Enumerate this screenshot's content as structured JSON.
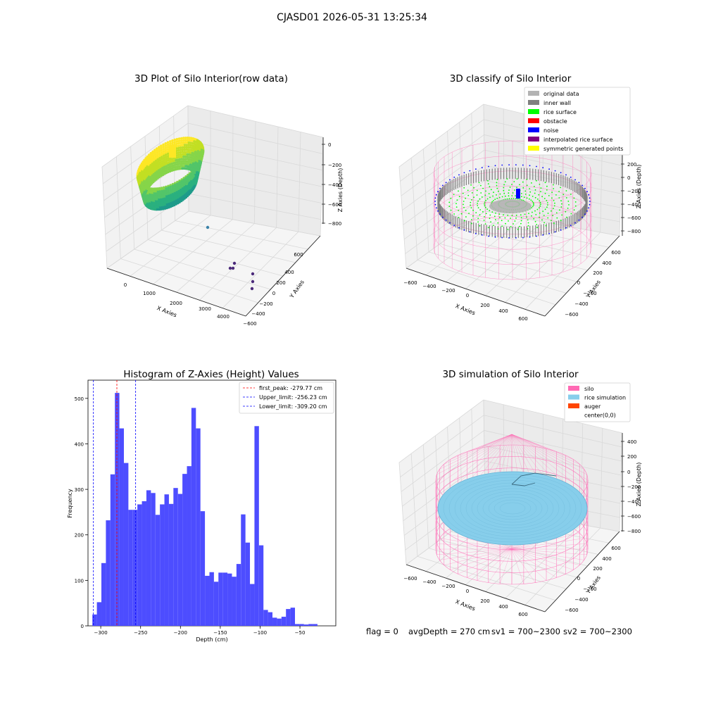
{
  "figure_title": "CJASD01 2026-05-31 13:25:34",
  "status_line": {
    "flag": "flag = 0",
    "avg_depth": "avgDepth = 270 cm",
    "sv1": "sv1 = 700~2300",
    "sv2": "sv2 = 700~2300"
  },
  "colors": {
    "original_data": "#b3b3b3",
    "inner_wall": "#808080",
    "rice_surface": "#00ff00",
    "obstacle": "#ff0000",
    "noise": "#0000ff",
    "interpolated_rice_surface": "#800080",
    "symmetric_generated_points": "#ffff00",
    "silo": "#ff69b4",
    "rice_simulation": "#87ceeb",
    "auger": "#ff4500",
    "histogram_bar": "#4d4dff",
    "first_peak_line": "#ff0000",
    "limit_lines": "#0000ff"
  },
  "chart_data": [
    {
      "type": "scatter3d",
      "title": "3D Plot of Silo Interior(row data)",
      "xlabel": "X Axies",
      "ylabel": "Y Axies",
      "zlabel": "Z Axies (Depth)",
      "x_ticks": [
        "0",
        "1000",
        "2000",
        "3000",
        "4000"
      ],
      "y_ticks": [
        "600",
        "400",
        "200",
        "0",
        "−200",
        "−400",
        "−600"
      ],
      "z_ticks": [
        "0",
        "−200",
        "−400",
        "−600",
        "−800"
      ],
      "outlier_points_note": "sparse points toward large X, deep Z"
    },
    {
      "type": "scatter3d",
      "title": "3D classify of Silo Interior",
      "xlabel": "X Axies",
      "ylabel": "Y Axies",
      "zlabel": "Z Axies (Depth)",
      "x_ticks": [
        "−600",
        "−400",
        "−200",
        "0",
        "200",
        "400",
        "600"
      ],
      "y_ticks": [
        "600",
        "400",
        "200",
        "0",
        "−200",
        "−400",
        "−600"
      ],
      "z_ticks": [
        "200",
        "0",
        "−200",
        "−400",
        "−600",
        "−800"
      ],
      "legend": [
        {
          "label": "original data",
          "color": "#b3b3b3"
        },
        {
          "label": "inner wall",
          "color": "#808080"
        },
        {
          "label": "rice surface",
          "color": "#00ff00"
        },
        {
          "label": "obstacle",
          "color": "#ff0000"
        },
        {
          "label": "noise",
          "color": "#0000ff"
        },
        {
          "label": "interpolated rice surface",
          "color": "#800080"
        },
        {
          "label": "symmetric generated points",
          "color": "#ffff00"
        }
      ],
      "legend_placement": "top-right"
    },
    {
      "type": "bar",
      "title": "Histogram of Z-Axies (Height) Values",
      "xlabel": "Depth (cm)",
      "ylabel": "Frequency",
      "xlim": [
        -316,
        -5
      ],
      "ylim": [
        0,
        540
      ],
      "x_ticks": [
        -300,
        -250,
        -200,
        -150,
        -100,
        -50
      ],
      "y_ticks": [
        0,
        100,
        200,
        300,
        400,
        500
      ],
      "bin_width": 5.65,
      "bin_start": -310.5,
      "values": [
        25,
        52,
        138,
        232,
        333,
        512,
        434,
        358,
        255,
        255,
        267,
        274,
        298,
        292,
        244,
        267,
        289,
        268,
        303,
        290,
        334,
        351,
        479,
        434,
        252,
        110,
        118,
        97,
        117,
        117,
        115,
        108,
        136,
        245,
        183,
        92,
        439,
        177,
        35,
        30,
        18,
        16,
        20,
        37,
        40,
        4,
        4,
        3,
        4,
        4
      ],
      "vlines": [
        {
          "label": "first_peak: -279.77 cm",
          "x": -279.77,
          "color": "#ff0000"
        },
        {
          "label": "Upper_limit: -256.23 cm",
          "x": -256.23,
          "color": "#0000ff"
        },
        {
          "label": "Lower_limit: -309.20 cm",
          "x": -309.2,
          "color": "#0000ff"
        }
      ],
      "legend_placement": "top-right"
    },
    {
      "type": "surface3d",
      "title": "3D simulation of Silo Interior",
      "xlabel": "X Axies",
      "ylabel": "Y Axies",
      "zlabel": "Z Axies (Depth)",
      "x_ticks": [
        "−600",
        "−400",
        "−200",
        "0",
        "200",
        "400",
        "600"
      ],
      "y_ticks": [
        "600",
        "400",
        "200",
        "0",
        "−200",
        "−400",
        "−600"
      ],
      "z_ticks": [
        "400",
        "200",
        "0",
        "−200",
        "−400",
        "−600",
        "−800"
      ],
      "legend": [
        {
          "label": "silo",
          "color": "#ff69b4"
        },
        {
          "label": "rice simulation",
          "color": "#87ceeb"
        },
        {
          "label": "auger",
          "color": "#ff4500"
        },
        {
          "label": "center(0,0)",
          "color": "#ffffff"
        }
      ],
      "legend_placement": "top-right"
    }
  ]
}
